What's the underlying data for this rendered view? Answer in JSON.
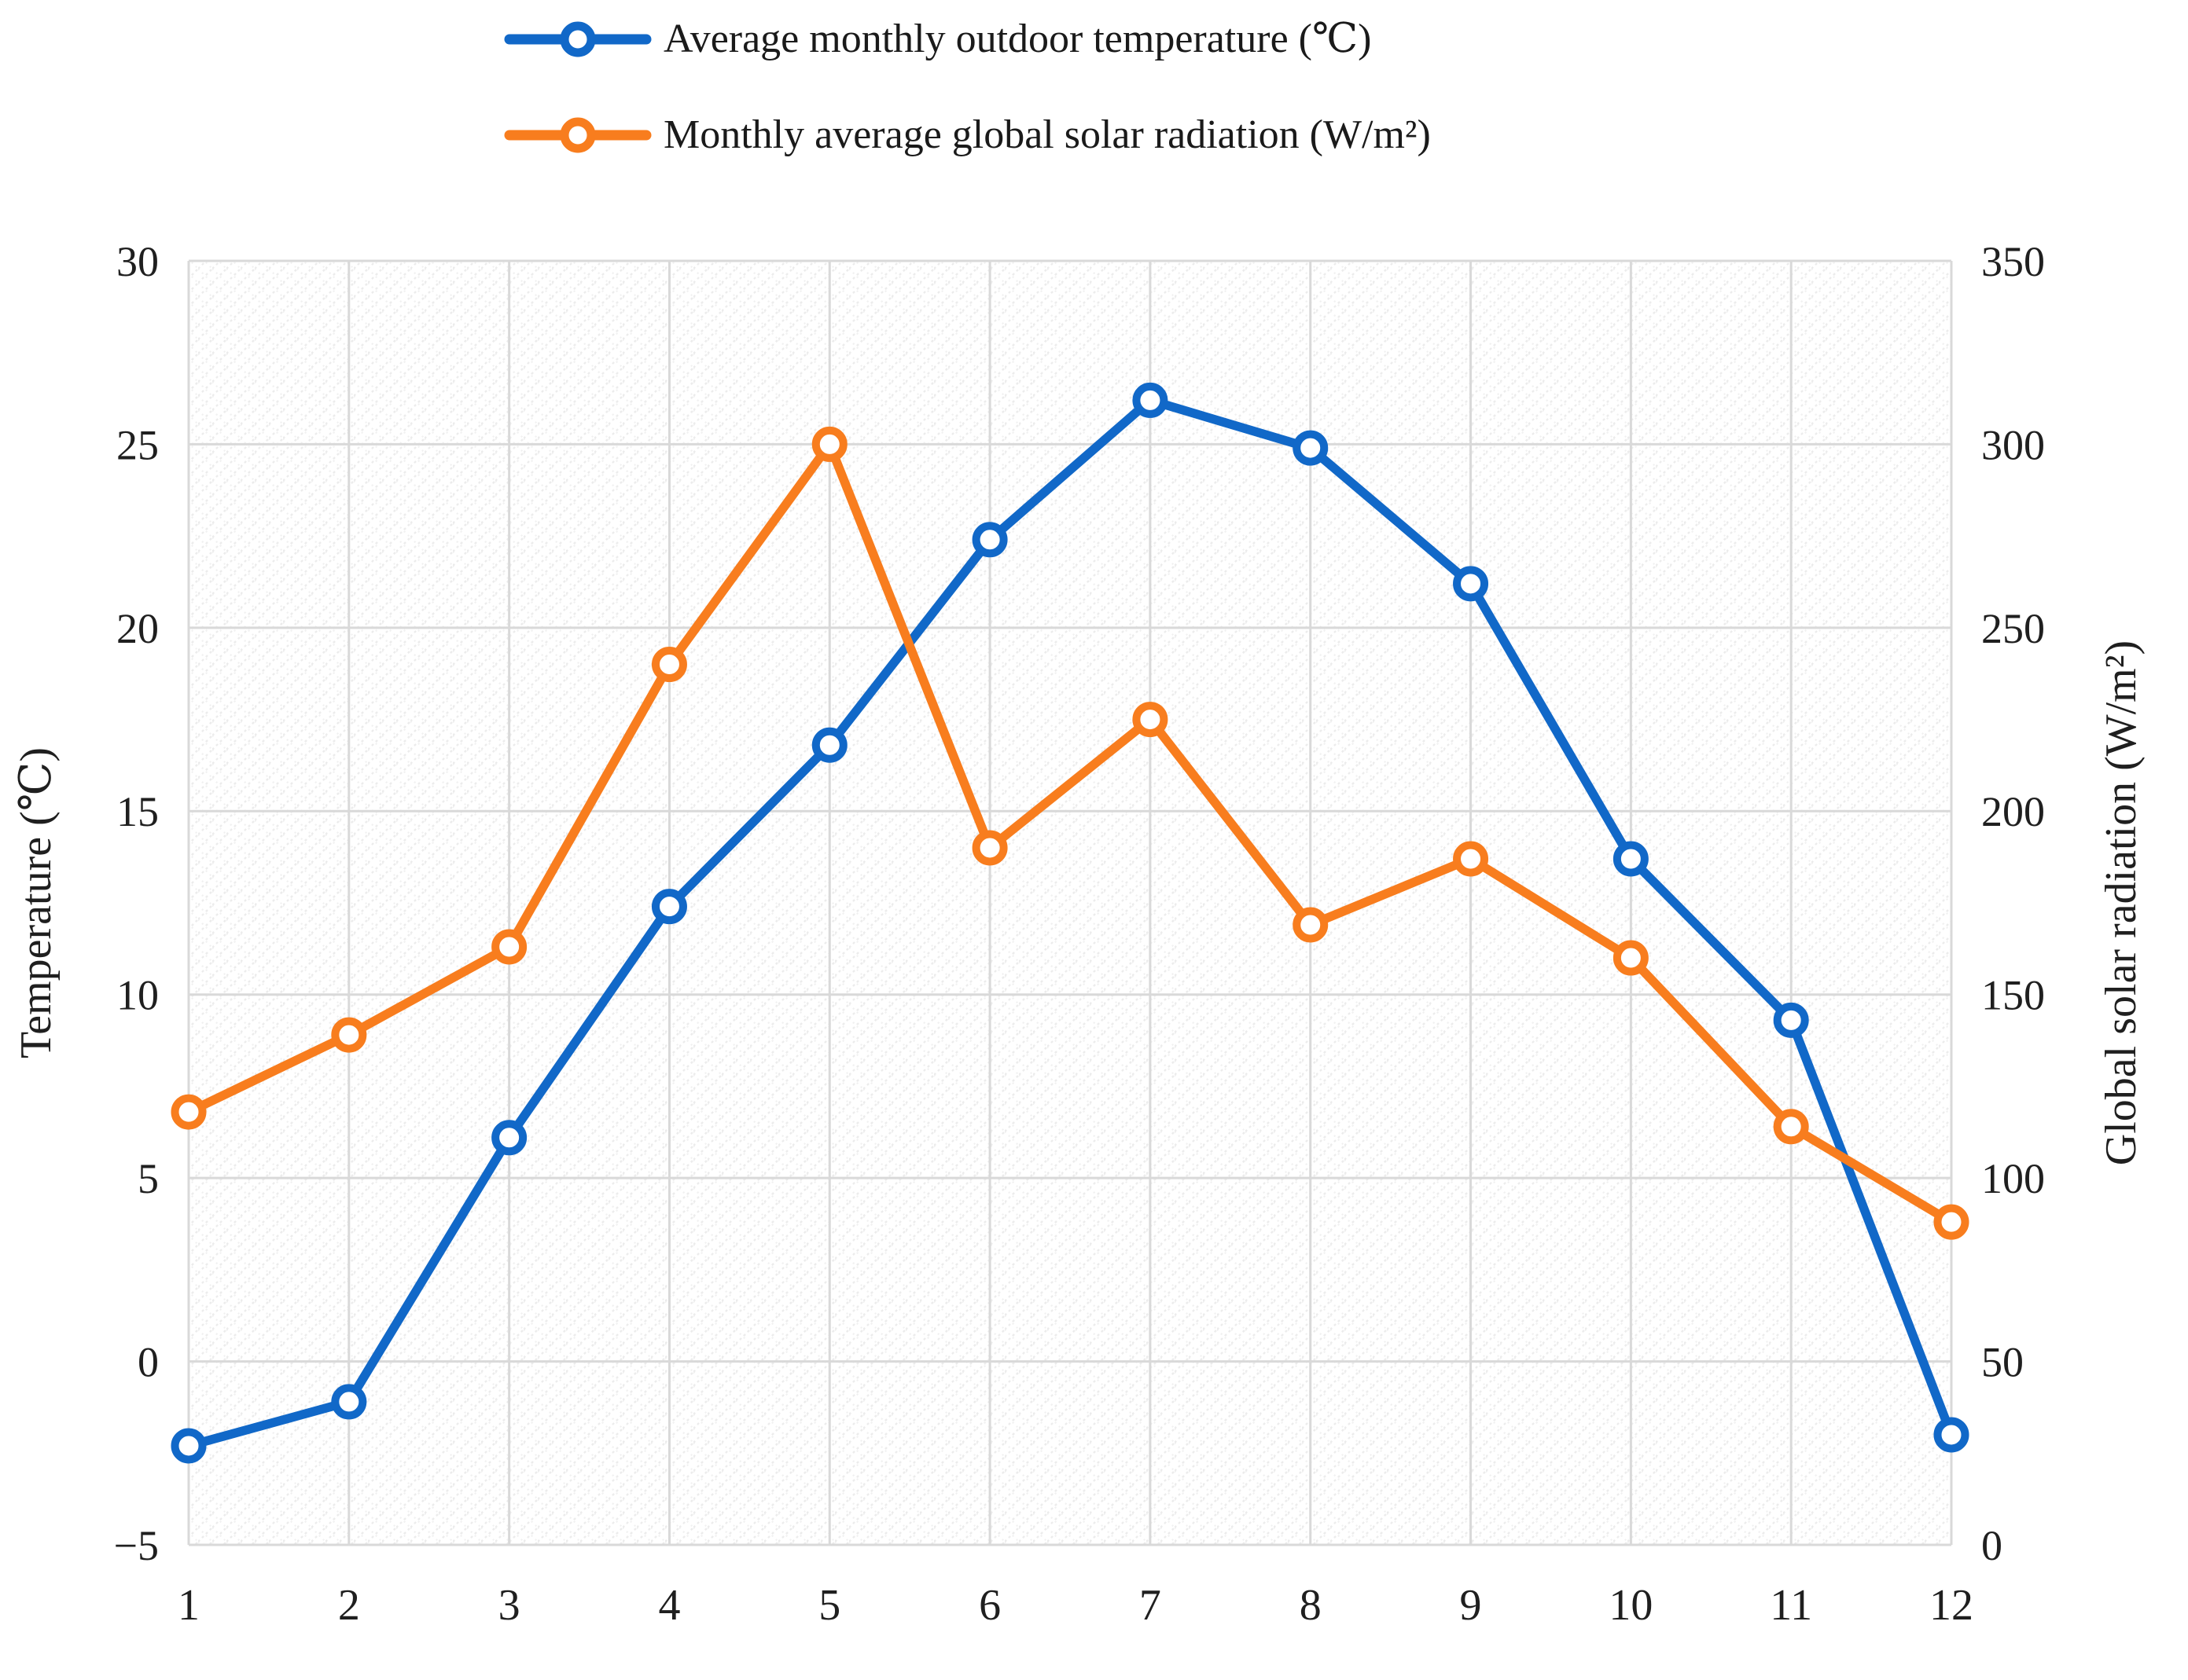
{
  "chart_data": {
    "type": "line",
    "title": "",
    "x_categories": [
      1,
      2,
      3,
      4,
      5,
      6,
      7,
      8,
      9,
      10,
      11,
      12
    ],
    "xlabel": "",
    "series": [
      {
        "name": "Average monthly outdoor temperature (℃)",
        "axis": "left",
        "color": "#1168C8",
        "marker": "open-circle",
        "values": [
          -2.3,
          -1.1,
          6.1,
          12.4,
          16.8,
          22.4,
          26.2,
          24.9,
          21.2,
          13.7,
          9.3,
          -2.0
        ]
      },
      {
        "name": "Monthly average global solar radiation (W/m²)",
        "axis": "right",
        "color": "#F87D1E",
        "marker": "open-circle",
        "values": [
          118,
          139,
          163,
          240,
          300,
          190,
          225,
          169,
          187,
          160,
          114,
          88
        ]
      }
    ],
    "left_axis": {
      "title": "Temperature (℃)",
      "min": -5,
      "max": 30,
      "step": 5,
      "ticks": [
        30,
        25,
        20,
        15,
        10,
        5,
        0,
        -5
      ]
    },
    "right_axis": {
      "title": "Global solar radiation (W/m²)",
      "min": 0,
      "max": 350,
      "step": 50,
      "ticks": [
        350,
        300,
        250,
        200,
        150,
        100,
        50,
        0
      ]
    },
    "grid": true,
    "legend_position": "top",
    "plot_background": "diagonal-crosshatch",
    "colors": {
      "gridline": "#d9d9d9",
      "hatch_light": "#ececec",
      "hatch_lighter": "#f1f1f1",
      "text": "#1f1f1f",
      "marker_fill": "#ffffff"
    }
  }
}
